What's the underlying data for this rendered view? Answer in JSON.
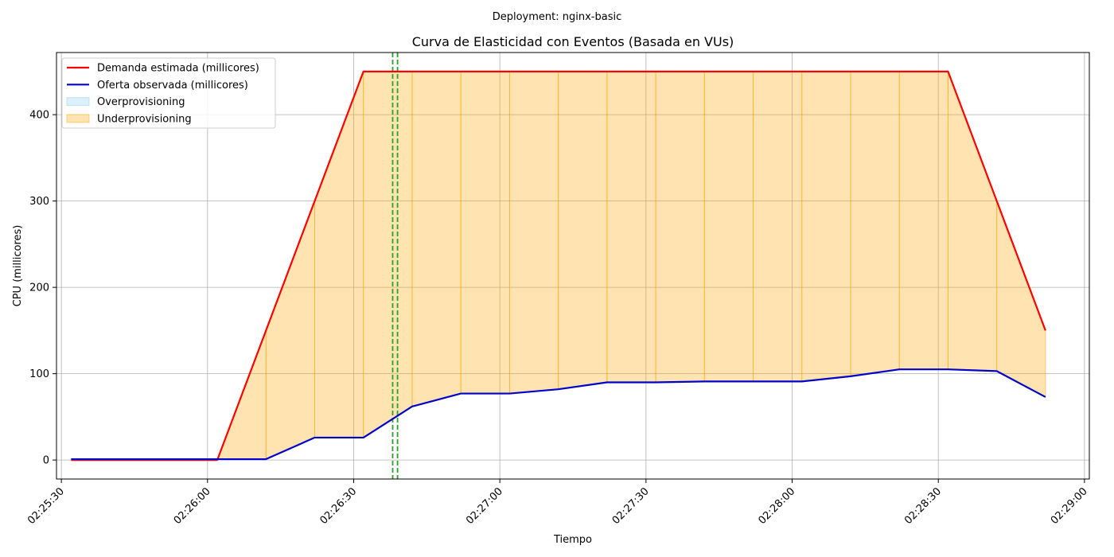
{
  "chart_data": {
    "type": "line",
    "suptitle": "Deployment: nginx-basic",
    "title": "Curva de Elasticidad con Eventos (Basada en VUs)",
    "xlabel": "Tiempo",
    "ylabel": "CPU (millicores)",
    "xlim": [
      "02:25:29",
      "02:29:01"
    ],
    "ylim": [
      -22,
      472
    ],
    "grid": true,
    "legend_position": "top-left",
    "x_ticks": [
      "02:25:30",
      "02:26:00",
      "02:26:30",
      "02:27:00",
      "02:27:30",
      "02:28:00",
      "02:28:30",
      "02:29:00"
    ],
    "y_ticks": [
      0,
      100,
      200,
      300,
      400
    ],
    "x": [
      "02:25:32",
      "02:26:02",
      "02:26:12",
      "02:26:22",
      "02:26:32",
      "02:26:42",
      "02:26:52",
      "02:27:02",
      "02:27:12",
      "02:27:22",
      "02:27:32",
      "02:27:42",
      "02:27:52",
      "02:28:02",
      "02:28:12",
      "02:28:22",
      "02:28:32",
      "02:28:42",
      "02:28:52"
    ],
    "series": [
      {
        "name": "Demanda estimada (millicores)",
        "color": "#ff0000",
        "values": [
          0,
          0,
          150,
          300,
          450,
          450,
          450,
          450,
          450,
          450,
          450,
          450,
          450,
          450,
          450,
          450,
          450,
          300,
          150
        ]
      },
      {
        "name": "Oferta observada (millicores)",
        "color": "#0000cc",
        "values": [
          1,
          1,
          1,
          26,
          26,
          62,
          77,
          77,
          82,
          90,
          90,
          91,
          91,
          91,
          97,
          105,
          105,
          103,
          73
        ]
      }
    ],
    "fill_areas": [
      {
        "name": "Overprovisioning",
        "color": "#87ceeb",
        "opacity": 0.3
      },
      {
        "name": "Underprovisioning",
        "color": "#ffa500",
        "opacity": 0.3
      }
    ],
    "events": [
      {
        "time": "02:26:38",
        "color": "#2ca02c",
        "style": "dashed"
      },
      {
        "time": "02:26:39",
        "color": "#2ca02c",
        "style": "dashed"
      }
    ]
  }
}
